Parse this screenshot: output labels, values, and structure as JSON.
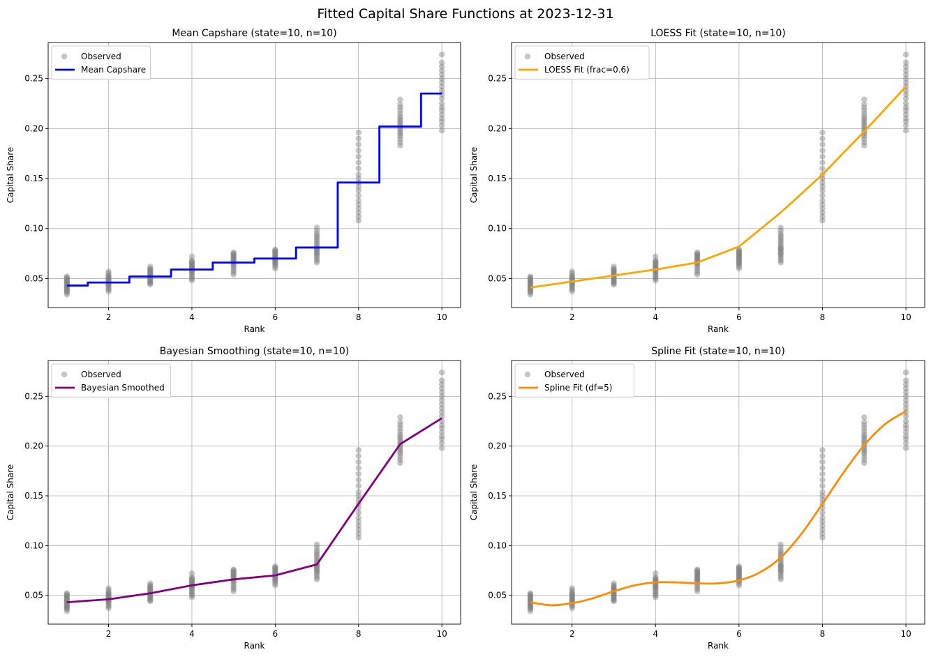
{
  "figure": {
    "suptitle": "Fitted Capital Share Functions at 2023-12-31"
  },
  "colors": {
    "observed": "#808080",
    "grid": "#b0b0b0",
    "mean": "#0000ff",
    "loess": "#ffa500",
    "bayes": "#800080",
    "spline": "#ff8c00"
  },
  "chart_data": [
    {
      "type": "line",
      "variant": "step",
      "title": "Mean Capshare (state=10, n=10)",
      "xlabel": "Rank",
      "ylabel": "Capital Share",
      "xlim": [
        0.55,
        10.45
      ],
      "ylim": [
        0.021,
        0.286
      ],
      "xticks": [
        2,
        4,
        6,
        8,
        10
      ],
      "yticks": [
        0.05,
        0.1,
        0.15,
        0.2,
        0.25
      ],
      "ytick_labels": [
        "0.05",
        "0.10",
        "0.15",
        "0.20",
        "0.25"
      ],
      "grid": true,
      "legend_position": "upper-left",
      "series": [
        {
          "name": "Mean Capshare",
          "x": [
            1,
            2,
            3,
            4,
            5,
            6,
            7,
            8,
            9,
            10
          ],
          "y": [
            0.043,
            0.046,
            0.052,
            0.059,
            0.066,
            0.07,
            0.081,
            0.146,
            0.202,
            0.235
          ]
        }
      ]
    },
    {
      "type": "line",
      "title": "LOESS Fit (state=10, n=10)",
      "xlabel": "Rank",
      "ylabel": "Capital Share",
      "xlim": [
        0.55,
        10.45
      ],
      "ylim": [
        0.021,
        0.286
      ],
      "xticks": [
        2,
        4,
        6,
        8,
        10
      ],
      "yticks": [
        0.05,
        0.1,
        0.15,
        0.2,
        0.25
      ],
      "ytick_labels": [
        "0.05",
        "0.10",
        "0.15",
        "0.20",
        "0.25"
      ],
      "grid": true,
      "legend_position": "upper-left",
      "series": [
        {
          "name": "LOESS Fit (frac=0.6)",
          "x": [
            1,
            2,
            3,
            4,
            5,
            6,
            7,
            8,
            9,
            10
          ],
          "y": [
            0.041,
            0.047,
            0.053,
            0.059,
            0.066,
            0.082,
            0.116,
            0.154,
            0.197,
            0.242
          ]
        }
      ]
    },
    {
      "type": "line",
      "title": "Bayesian Smoothing (state=10, n=10)",
      "xlabel": "Rank",
      "ylabel": "Capital Share",
      "xlim": [
        0.55,
        10.45
      ],
      "ylim": [
        0.021,
        0.286
      ],
      "xticks": [
        2,
        4,
        6,
        8,
        10
      ],
      "yticks": [
        0.05,
        0.1,
        0.15,
        0.2,
        0.25
      ],
      "ytick_labels": [
        "0.05",
        "0.10",
        "0.15",
        "0.20",
        "0.25"
      ],
      "grid": true,
      "legend_position": "upper-left",
      "series": [
        {
          "name": "Bayesian Smoothed",
          "x": [
            1,
            2,
            3,
            4,
            5,
            6,
            7,
            8,
            9,
            10
          ],
          "y": [
            0.043,
            0.046,
            0.052,
            0.06,
            0.066,
            0.07,
            0.081,
            0.142,
            0.202,
            0.228
          ]
        }
      ]
    },
    {
      "type": "line",
      "title": "Spline Fit (state=10, n=10)",
      "xlabel": "Rank",
      "ylabel": "Capital Share",
      "xlim": [
        0.55,
        10.45
      ],
      "ylim": [
        0.021,
        0.286
      ],
      "xticks": [
        2,
        4,
        6,
        8,
        10
      ],
      "yticks": [
        0.05,
        0.1,
        0.15,
        0.2,
        0.25
      ],
      "ytick_labels": [
        "0.05",
        "0.10",
        "0.15",
        "0.20",
        "0.25"
      ],
      "grid": true,
      "legend_position": "upper-left",
      "series": [
        {
          "name": "Spline Fit (df=5)",
          "x": [
            1,
            1.5,
            2,
            2.5,
            3,
            3.5,
            4,
            4.5,
            5,
            5.5,
            6,
            6.5,
            7,
            7.5,
            8,
            8.5,
            9,
            9.5,
            10
          ],
          "y": [
            0.043,
            0.04,
            0.042,
            0.047,
            0.054,
            0.06,
            0.063,
            0.063,
            0.062,
            0.062,
            0.065,
            0.073,
            0.088,
            0.112,
            0.142,
            0.173,
            0.201,
            0.222,
            0.235
          ]
        }
      ]
    }
  ],
  "observed": {
    "name": "Observed",
    "points": [
      {
        "x": 1,
        "y": [
          0.034,
          0.036,
          0.037,
          0.038,
          0.039,
          0.04,
          0.041,
          0.042,
          0.043,
          0.044,
          0.045,
          0.046,
          0.047,
          0.048,
          0.049,
          0.05,
          0.051,
          0.052
        ]
      },
      {
        "x": 2,
        "y": [
          0.037,
          0.039,
          0.04,
          0.042,
          0.043,
          0.044,
          0.045,
          0.046,
          0.047,
          0.048,
          0.049,
          0.05,
          0.051,
          0.052,
          0.053,
          0.055,
          0.057
        ]
      },
      {
        "x": 3,
        "y": [
          0.044,
          0.045,
          0.046,
          0.047,
          0.048,
          0.049,
          0.05,
          0.051,
          0.052,
          0.053,
          0.054,
          0.055,
          0.056,
          0.057,
          0.058,
          0.059,
          0.06,
          0.062
        ]
      },
      {
        "x": 4,
        "y": [
          0.048,
          0.05,
          0.051,
          0.053,
          0.054,
          0.056,
          0.057,
          0.058,
          0.059,
          0.06,
          0.061,
          0.062,
          0.063,
          0.064,
          0.065,
          0.066,
          0.067,
          0.068,
          0.072
        ]
      },
      {
        "x": 5,
        "y": [
          0.054,
          0.056,
          0.058,
          0.06,
          0.062,
          0.064,
          0.065,
          0.066,
          0.067,
          0.068,
          0.069,
          0.07,
          0.071,
          0.072,
          0.073,
          0.074,
          0.075,
          0.076
        ]
      },
      {
        "x": 6,
        "y": [
          0.06,
          0.062,
          0.064,
          0.065,
          0.066,
          0.067,
          0.068,
          0.069,
          0.07,
          0.071,
          0.072,
          0.073,
          0.074,
          0.075,
          0.076,
          0.077,
          0.078,
          0.079
        ]
      },
      {
        "x": 7,
        "y": [
          0.066,
          0.068,
          0.07,
          0.072,
          0.074,
          0.075,
          0.076,
          0.078,
          0.079,
          0.08,
          0.081,
          0.083,
          0.085,
          0.087,
          0.089,
          0.091,
          0.093,
          0.095,
          0.098,
          0.101
        ]
      },
      {
        "x": 8,
        "y": [
          0.108,
          0.112,
          0.116,
          0.12,
          0.124,
          0.128,
          0.133,
          0.138,
          0.142,
          0.146,
          0.15,
          0.154,
          0.16,
          0.166,
          0.172,
          0.178,
          0.184,
          0.19,
          0.196
        ]
      },
      {
        "x": 9,
        "y": [
          0.183,
          0.186,
          0.189,
          0.192,
          0.194,
          0.196,
          0.198,
          0.2,
          0.202,
          0.204,
          0.206,
          0.208,
          0.21,
          0.212,
          0.215,
          0.218,
          0.221,
          0.224,
          0.229
        ]
      },
      {
        "x": 10,
        "y": [
          0.198,
          0.203,
          0.207,
          0.21,
          0.214,
          0.218,
          0.221,
          0.225,
          0.23,
          0.234,
          0.238,
          0.242,
          0.246,
          0.25,
          0.254,
          0.258,
          0.262,
          0.266,
          0.274
        ]
      }
    ]
  }
}
